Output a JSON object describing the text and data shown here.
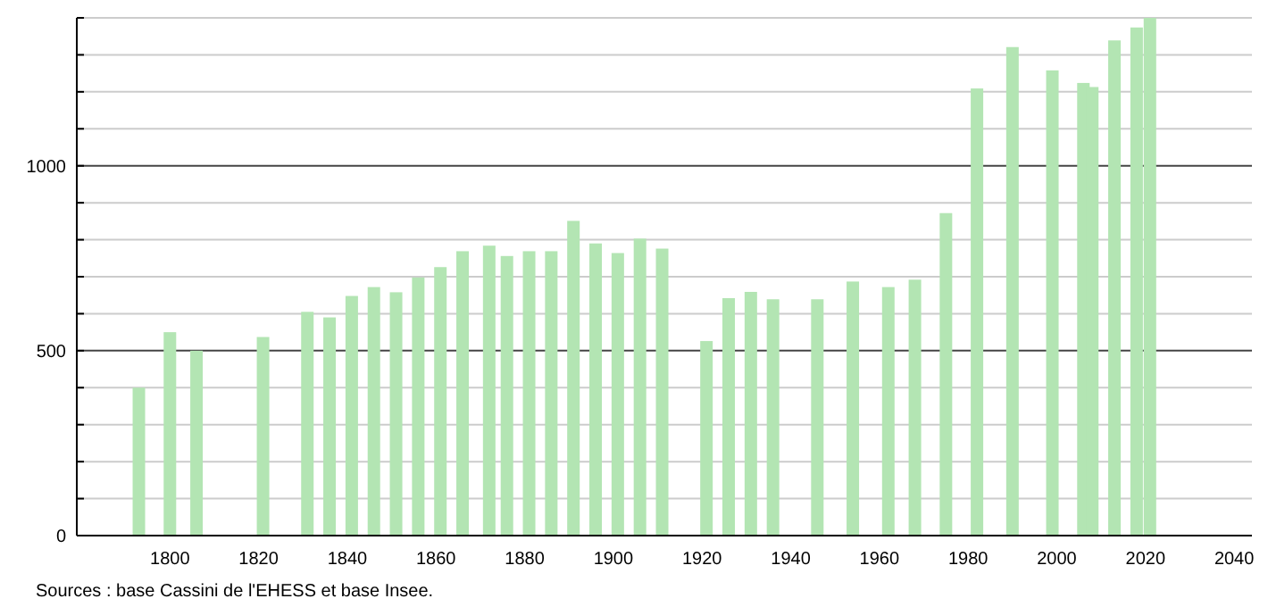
{
  "chart_data": {
    "type": "bar",
    "x": [
      1793,
      1800,
      1806,
      1821,
      1831,
      1836,
      1841,
      1846,
      1851,
      1856,
      1861,
      1866,
      1872,
      1876,
      1881,
      1886,
      1891,
      1896,
      1901,
      1906,
      1911,
      1921,
      1926,
      1931,
      1936,
      1946,
      1954,
      1962,
      1968,
      1975,
      1982,
      1990,
      1999,
      2006,
      2008,
      2013,
      2018,
      2021
    ],
    "values": [
      400,
      550,
      500,
      537,
      605,
      590,
      648,
      672,
      658,
      698,
      726,
      769,
      784,
      756,
      769,
      769,
      851,
      790,
      764,
      803,
      776,
      526,
      642,
      659,
      639,
      639,
      687,
      672,
      692,
      872,
      1209,
      1321,
      1258,
      1224,
      1213,
      1339,
      1374,
      1400
    ],
    "color": "#b3e5b3",
    "xlim": [
      1779,
      2044
    ],
    "xticks": [
      1800,
      1820,
      1840,
      1860,
      1880,
      1900,
      1920,
      1940,
      1960,
      1980,
      2000,
      2020,
      2040
    ],
    "ylim": [
      0,
      1400
    ],
    "yticks": [
      0,
      {
        "value": 100,
        "label": null
      },
      {
        "value": 200,
        "label": null
      },
      {
        "value": 300,
        "label": null
      },
      {
        "value": 400,
        "label": null
      },
      500,
      {
        "value": 600,
        "label": null
      },
      {
        "value": 700,
        "label": null
      },
      {
        "value": 800,
        "label": null
      },
      {
        "value": 900,
        "label": null
      },
      1000,
      {
        "value": 1100,
        "label": null
      },
      {
        "value": 1200,
        "label": null
      },
      {
        "value": 1300,
        "label": null
      },
      {
        "value": 1400,
        "label": null
      }
    ],
    "grid": true,
    "annotations": [
      "Sources : base Cassini de l'EHESS et base Insee."
    ]
  }
}
